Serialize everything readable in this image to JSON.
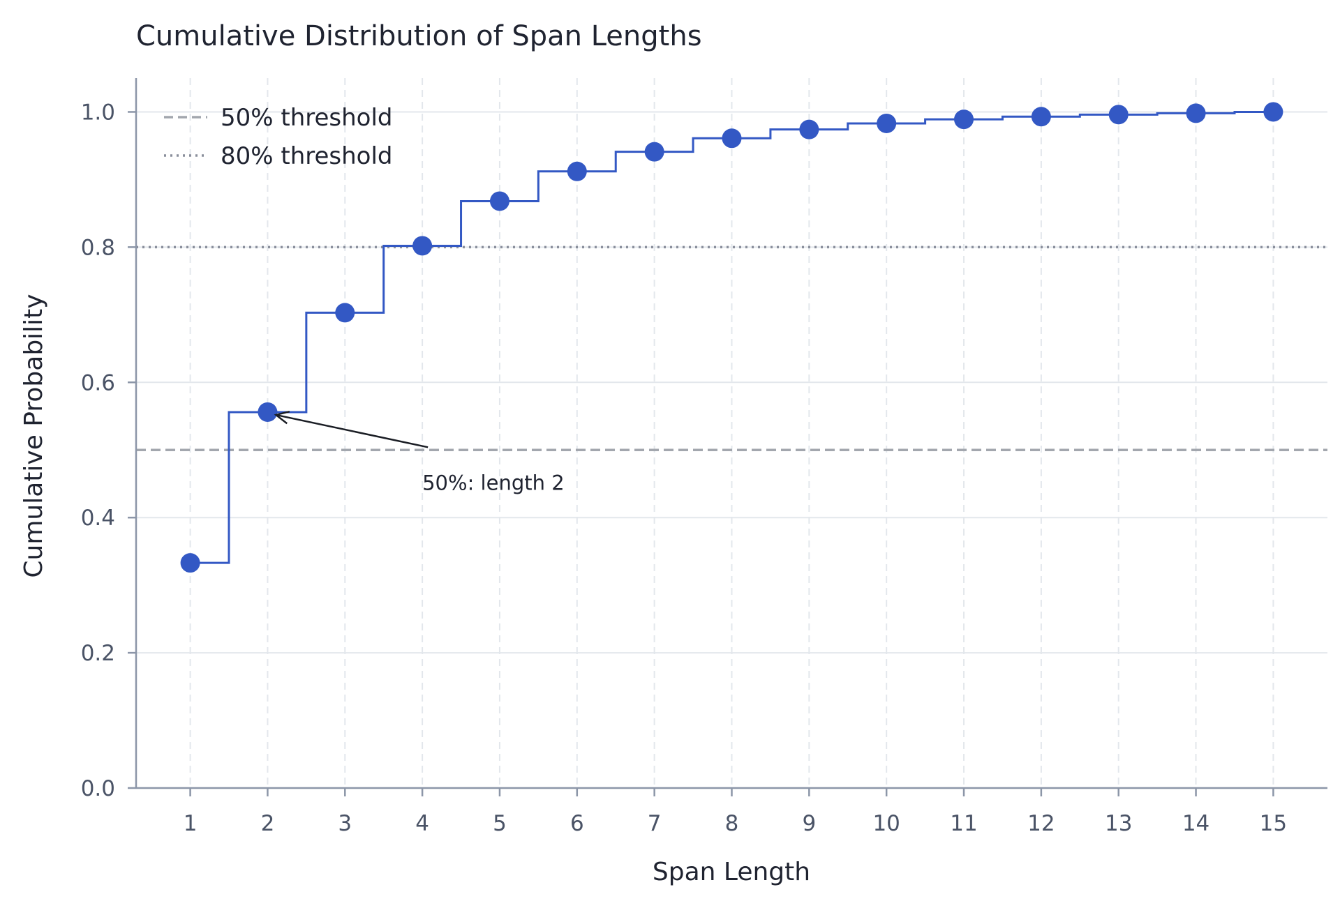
{
  "chart_data": {
    "type": "line",
    "title": "Cumulative Distribution of Span Lengths",
    "xlabel": "Span Length",
    "ylabel": "Cumulative Probability",
    "x": [
      1,
      2,
      3,
      4,
      5,
      6,
      7,
      8,
      9,
      10,
      11,
      12,
      13,
      14,
      15
    ],
    "x_tick_labels": [
      "1",
      "2",
      "3",
      "4",
      "5",
      "6",
      "7",
      "8",
      "9",
      "10",
      "11",
      "12",
      "13",
      "14",
      "15"
    ],
    "y_tick_labels": [
      "0.0",
      "0.2",
      "0.4",
      "0.6",
      "0.8",
      "1.0"
    ],
    "y_ticks": [
      0.0,
      0.2,
      0.4,
      0.6,
      0.8,
      1.0
    ],
    "series": [
      {
        "values": [
          0.333,
          0.556,
          0.703,
          0.802,
          0.868,
          0.912,
          0.941,
          0.961,
          0.974,
          0.983,
          0.989,
          0.993,
          0.996,
          0.998,
          1.0
        ],
        "color": "#3358c4",
        "step": "mid",
        "markers": true
      }
    ],
    "xlim": [
      0.3,
      15.7
    ],
    "ylim": [
      0.0,
      1.05
    ],
    "grid": true,
    "legend_position": "top-left",
    "reference_lines": [
      {
        "y": 0.5,
        "style": "dashed",
        "color": "#a3a7ae",
        "label": "50% threshold"
      },
      {
        "y": 0.8,
        "style": "dotted",
        "color": "#8a8f9c",
        "label": "80% threshold"
      }
    ],
    "annotations": [
      {
        "text": "50%: length 2",
        "point": [
          2,
          0.556
        ],
        "text_pos": [
          4.0,
          0.47
        ]
      }
    ]
  }
}
